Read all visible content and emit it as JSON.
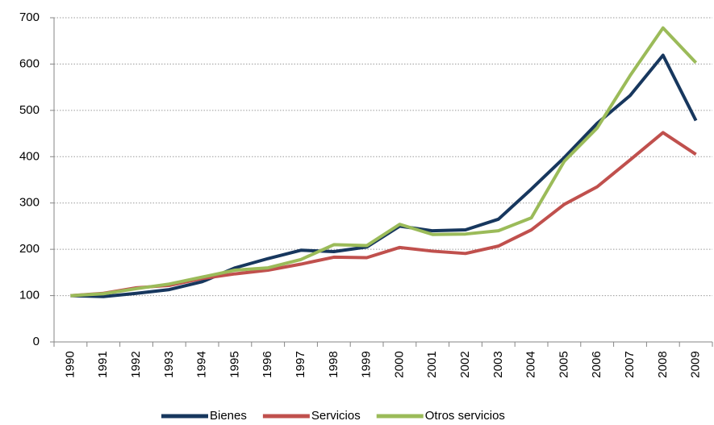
{
  "chart_data": {
    "type": "line",
    "categories": [
      "1990",
      "1991",
      "1992",
      "1993",
      "1994",
      "1995",
      "1996",
      "1997",
      "1998",
      "1999",
      "2000",
      "2001",
      "2002",
      "2003",
      "2004",
      "2005",
      "2006",
      "2007",
      "2008",
      "2009"
    ],
    "series": [
      {
        "name": "Bienes",
        "color": "#17375e",
        "values": [
          100,
          98,
          105,
          113,
          130,
          160,
          180,
          198,
          195,
          205,
          250,
          240,
          242,
          265,
          330,
          398,
          472,
          532,
          619,
          478
        ]
      },
      {
        "name": "Servicios",
        "color": "#c0504d",
        "values": [
          100,
          105,
          117,
          122,
          137,
          147,
          155,
          168,
          183,
          182,
          204,
          196,
          191,
          207,
          242,
          297,
          335,
          393,
          452,
          405
        ]
      },
      {
        "name": "Otros servicios",
        "color": "#9bbb59",
        "values": [
          100,
          104,
          115,
          125,
          140,
          155,
          160,
          178,
          210,
          208,
          254,
          232,
          233,
          240,
          268,
          390,
          462,
          575,
          678,
          603
        ]
      }
    ],
    "ylim": [
      0,
      700
    ],
    "yticks": [
      0,
      100,
      200,
      300,
      400,
      500,
      600,
      700
    ],
    "grid": true,
    "legend": "bottom"
  }
}
